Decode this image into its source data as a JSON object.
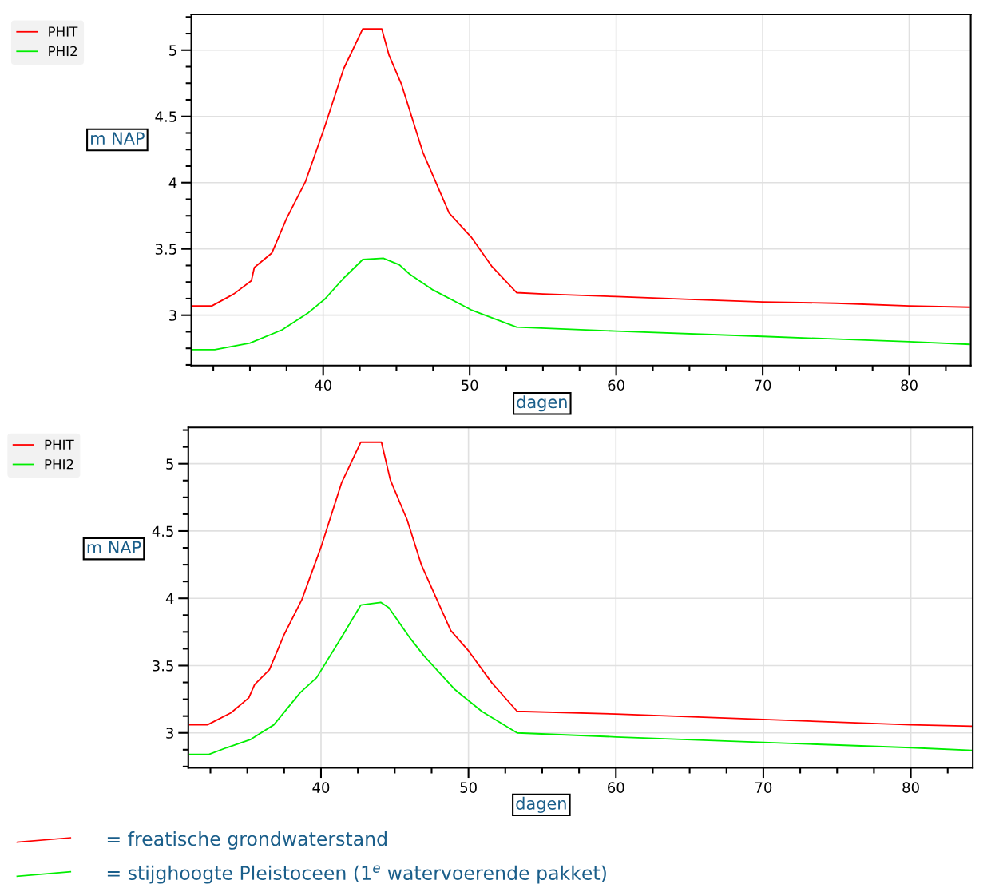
{
  "chart_data": [
    {
      "type": "line",
      "xlabel": "dagen",
      "ylabel": "m NAP",
      "xlim": [
        31,
        84.2
      ],
      "ylim": [
        2.62,
        5.27
      ],
      "xticks": [
        {
          "value": 32.5,
          "label": null
        },
        {
          "value": 35,
          "label": null
        },
        {
          "value": 37.5,
          "label": null
        },
        40,
        {
          "value": 42.5,
          "label": null
        },
        {
          "value": 45,
          "label": null
        },
        {
          "value": 47.5,
          "label": null
        },
        50,
        {
          "value": 52.5,
          "label": null
        },
        {
          "value": 55,
          "label": null
        },
        {
          "value": 57.5,
          "label": null
        },
        60,
        {
          "value": 62.5,
          "label": null
        },
        {
          "value": 65,
          "label": null
        },
        {
          "value": 67.5,
          "label": null
        },
        70,
        {
          "value": 72.5,
          "label": null
        },
        {
          "value": 75,
          "label": null
        },
        {
          "value": 77.5,
          "label": null
        },
        80,
        {
          "value": 82.5,
          "label": null
        }
      ],
      "yticks": [
        {
          "value": 2.625,
          "label": null
        },
        {
          "value": 2.75,
          "label": null
        },
        {
          "value": 2.875,
          "label": null
        },
        3,
        {
          "value": 3.125,
          "label": null
        },
        {
          "value": 3.25,
          "label": null
        },
        {
          "value": 3.375,
          "label": null
        },
        3.5,
        {
          "value": 3.625,
          "label": null
        },
        {
          "value": 3.75,
          "label": null
        },
        {
          "value": 3.875,
          "label": null
        },
        4,
        {
          "value": 4.125,
          "label": null
        },
        {
          "value": 4.25,
          "label": null
        },
        {
          "value": 4.375,
          "label": null
        },
        4.5,
        {
          "value": 4.625,
          "label": null
        },
        {
          "value": 4.75,
          "label": null
        },
        {
          "value": 4.875,
          "label": null
        },
        5,
        {
          "value": 5.125,
          "label": null
        },
        {
          "value": 5.25,
          "label": null
        }
      ],
      "grid": true,
      "legend": "left",
      "line_style": "solid",
      "marker": "none",
      "series": [
        {
          "name": "PHIT",
          "color": "#ff0000",
          "x": [
            31.1,
            32.4,
            33.9,
            35.1,
            35.3,
            36.5,
            37.5,
            38.8,
            40.1,
            41.4,
            42.7,
            44.0,
            44.5,
            45.35,
            46.8,
            48.6,
            50.1,
            51.5,
            53.2,
            55,
            60,
            65,
            70,
            75,
            80,
            84.1
          ],
          "values": [
            3.07,
            3.07,
            3.16,
            3.26,
            3.36,
            3.47,
            3.73,
            4.01,
            4.42,
            4.86,
            5.16,
            5.16,
            4.96,
            4.74,
            4.23,
            3.77,
            3.59,
            3.37,
            3.17,
            3.16,
            3.14,
            3.12,
            3.1,
            3.09,
            3.07,
            3.06
          ]
        },
        {
          "name": "PHI2",
          "color": "#00ee00",
          "x": [
            31.1,
            32.6,
            35.0,
            37.2,
            39.0,
            40.1,
            41.4,
            42.7,
            44.1,
            45.2,
            45.9,
            47.5,
            50.1,
            53.2,
            60,
            70,
            80,
            84.1
          ],
          "values": [
            2.74,
            2.74,
            2.79,
            2.89,
            3.02,
            3.12,
            3.28,
            3.42,
            3.43,
            3.38,
            3.31,
            3.19,
            3.04,
            2.91,
            2.88,
            2.84,
            2.8,
            2.78
          ]
        }
      ]
    },
    {
      "type": "line",
      "xlabel": "dagen",
      "ylabel": "m NAP",
      "xlim": [
        31,
        84.2
      ],
      "ylim": [
        2.74,
        5.27
      ],
      "xticks": [
        {
          "value": 32.5,
          "label": null
        },
        {
          "value": 35,
          "label": null
        },
        {
          "value": 37.5,
          "label": null
        },
        40,
        {
          "value": 42.5,
          "label": null
        },
        {
          "value": 45,
          "label": null
        },
        {
          "value": 47.5,
          "label": null
        },
        50,
        {
          "value": 52.5,
          "label": null
        },
        {
          "value": 55,
          "label": null
        },
        {
          "value": 57.5,
          "label": null
        },
        60,
        {
          "value": 62.5,
          "label": null
        },
        {
          "value": 65,
          "label": null
        },
        {
          "value": 67.5,
          "label": null
        },
        70,
        {
          "value": 72.5,
          "label": null
        },
        {
          "value": 75,
          "label": null
        },
        {
          "value": 77.5,
          "label": null
        },
        80,
        {
          "value": 82.5,
          "label": null
        }
      ],
      "yticks": [
        {
          "value": 2.75,
          "label": null
        },
        {
          "value": 2.875,
          "label": null
        },
        3,
        {
          "value": 3.125,
          "label": null
        },
        {
          "value": 3.25,
          "label": null
        },
        {
          "value": 3.375,
          "label": null
        },
        3.5,
        {
          "value": 3.625,
          "label": null
        },
        {
          "value": 3.75,
          "label": null
        },
        {
          "value": 3.875,
          "label": null
        },
        4,
        {
          "value": 4.125,
          "label": null
        },
        {
          "value": 4.25,
          "label": null
        },
        {
          "value": 4.375,
          "label": null
        },
        4.5,
        {
          "value": 4.625,
          "label": null
        },
        {
          "value": 4.75,
          "label": null
        },
        {
          "value": 4.875,
          "label": null
        },
        5,
        {
          "value": 5.125,
          "label": null
        },
        {
          "value": 5.25,
          "label": null
        }
      ],
      "grid": true,
      "legend": "left",
      "line_style": "solid",
      "marker": "none",
      "annotations": [
        "= freatische grondwaterstand",
        "= stijghoogte Pleistoceen (1$^{e}$ watervoerende pakket)"
      ],
      "series": [
        {
          "name": "PHIT",
          "color": "#ff0000",
          "x": [
            31.1,
            32.3,
            33.9,
            35.1,
            35.5,
            36.5,
            37.5,
            38.7,
            40.0,
            41.4,
            42.7,
            44.1,
            44.7,
            45.85,
            46.8,
            48.8,
            50.0,
            51.6,
            53.3,
            60,
            70,
            80,
            84.1
          ],
          "values": [
            3.06,
            3.06,
            3.15,
            3.26,
            3.36,
            3.47,
            3.73,
            3.99,
            4.38,
            4.86,
            5.16,
            5.16,
            4.88,
            4.58,
            4.25,
            3.76,
            3.61,
            3.37,
            3.16,
            3.14,
            3.1,
            3.06,
            3.05
          ]
        },
        {
          "name": "PHI2",
          "color": "#00ee00",
          "x": [
            31.1,
            32.4,
            33.6,
            35.2,
            36.8,
            38.6,
            39.7,
            41.5,
            42.7,
            44.05,
            44.6,
            46.0,
            47.0,
            49.1,
            50.9,
            53.3,
            60,
            70,
            80,
            84.1
          ],
          "values": [
            2.84,
            2.84,
            2.89,
            2.95,
            3.06,
            3.3,
            3.41,
            3.73,
            3.95,
            3.97,
            3.93,
            3.71,
            3.57,
            3.32,
            3.16,
            3.0,
            2.97,
            2.93,
            2.89,
            2.87
          ]
        }
      ]
    }
  ]
}
